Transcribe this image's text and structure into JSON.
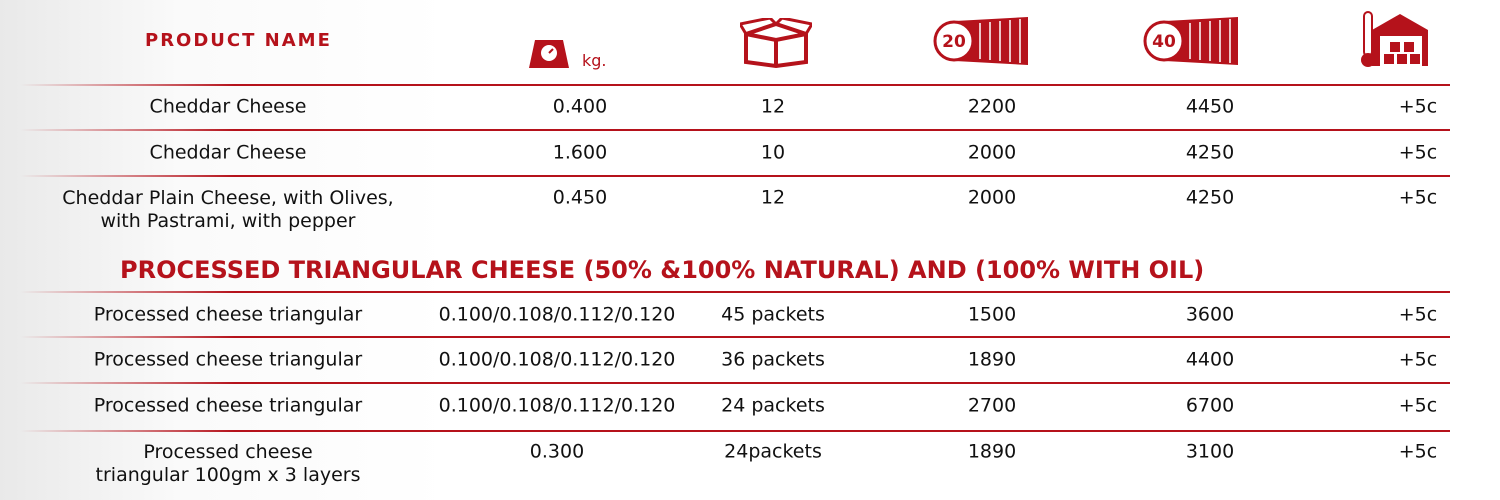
{
  "header": {
    "product_name": "PRODUCT NAME",
    "weight_unit": "kg.",
    "container_20": "20",
    "container_40": "40"
  },
  "table1": {
    "rows": [
      [
        "Cheddar Cheese",
        "0.400",
        "12",
        "2200",
        "4450",
        "+5c"
      ],
      [
        "Cheddar Cheese",
        "1.600",
        "10",
        "2000",
        "4250",
        "+5c"
      ],
      [
        "Cheddar Plain Cheese, with Olives,\nwith Pastrami, with pepper",
        "0.450",
        "12",
        "2000",
        "4250",
        "+5c"
      ]
    ]
  },
  "section_title": "PROCESSED TRIANGULAR CHEESE (50% &100% NATURAL) AND (100% WITH OIL)",
  "table2": {
    "rows": [
      [
        "Processed cheese triangular",
        "0.100/0.108/0.112/0.120",
        "45 packets",
        "1500",
        "3600",
        "+5c"
      ],
      [
        "Processed cheese triangular",
        "0.100/0.108/0.112/0.120",
        "36 packets",
        "1890",
        "4400",
        "+5c"
      ],
      [
        "Processed cheese triangular",
        "0.100/0.108/0.112/0.120",
        "24 packets",
        "2700",
        "6700",
        "+5c"
      ],
      [
        "Processed cheese\ntriangular 100gm x 3 layers",
        "0.300",
        "24packets",
        "1890",
        "3100",
        "+5c"
      ]
    ]
  }
}
